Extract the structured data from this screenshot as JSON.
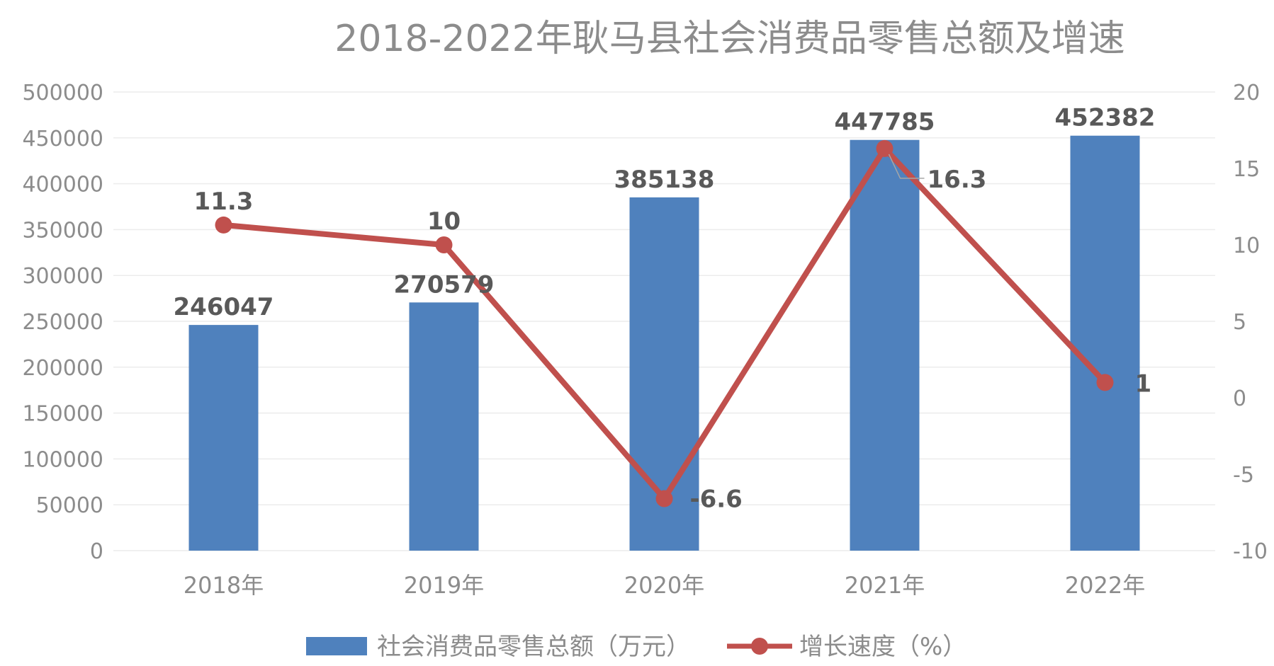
{
  "chart_data": {
    "type": "bar+line",
    "title": "2018-2022年耿马县社会消费品零售总额及增速",
    "categories": [
      "2018年",
      "2019年",
      "2020年",
      "2021年",
      "2022年"
    ],
    "series": [
      {
        "name": "社会消费品零售总额（万元）",
        "type": "bar",
        "axis": "left",
        "values": [
          246047,
          270579,
          385138,
          447785,
          452382
        ],
        "labels": [
          "246047",
          "270579",
          "385138",
          "447785",
          "452382"
        ],
        "color": "#4f81bd"
      },
      {
        "name": "增长速度（%）",
        "type": "line",
        "axis": "right",
        "values": [
          11.3,
          10,
          -6.6,
          16.3,
          1
        ],
        "labels": [
          "11.3",
          "10",
          "-6.6",
          "16.3",
          "1"
        ],
        "color": "#c0504d"
      }
    ],
    "y_left": {
      "range": [
        0,
        500000
      ],
      "ticks": [
        "0",
        "50000",
        "100000",
        "150000",
        "200000",
        "250000",
        "300000",
        "350000",
        "400000",
        "450000",
        "500000"
      ]
    },
    "y_right": {
      "range": [
        -10,
        20
      ],
      "ticks": [
        "-10",
        "-5",
        "0",
        "5",
        "10",
        "15",
        "20"
      ]
    },
    "grid": true,
    "legend_position": "bottom"
  }
}
